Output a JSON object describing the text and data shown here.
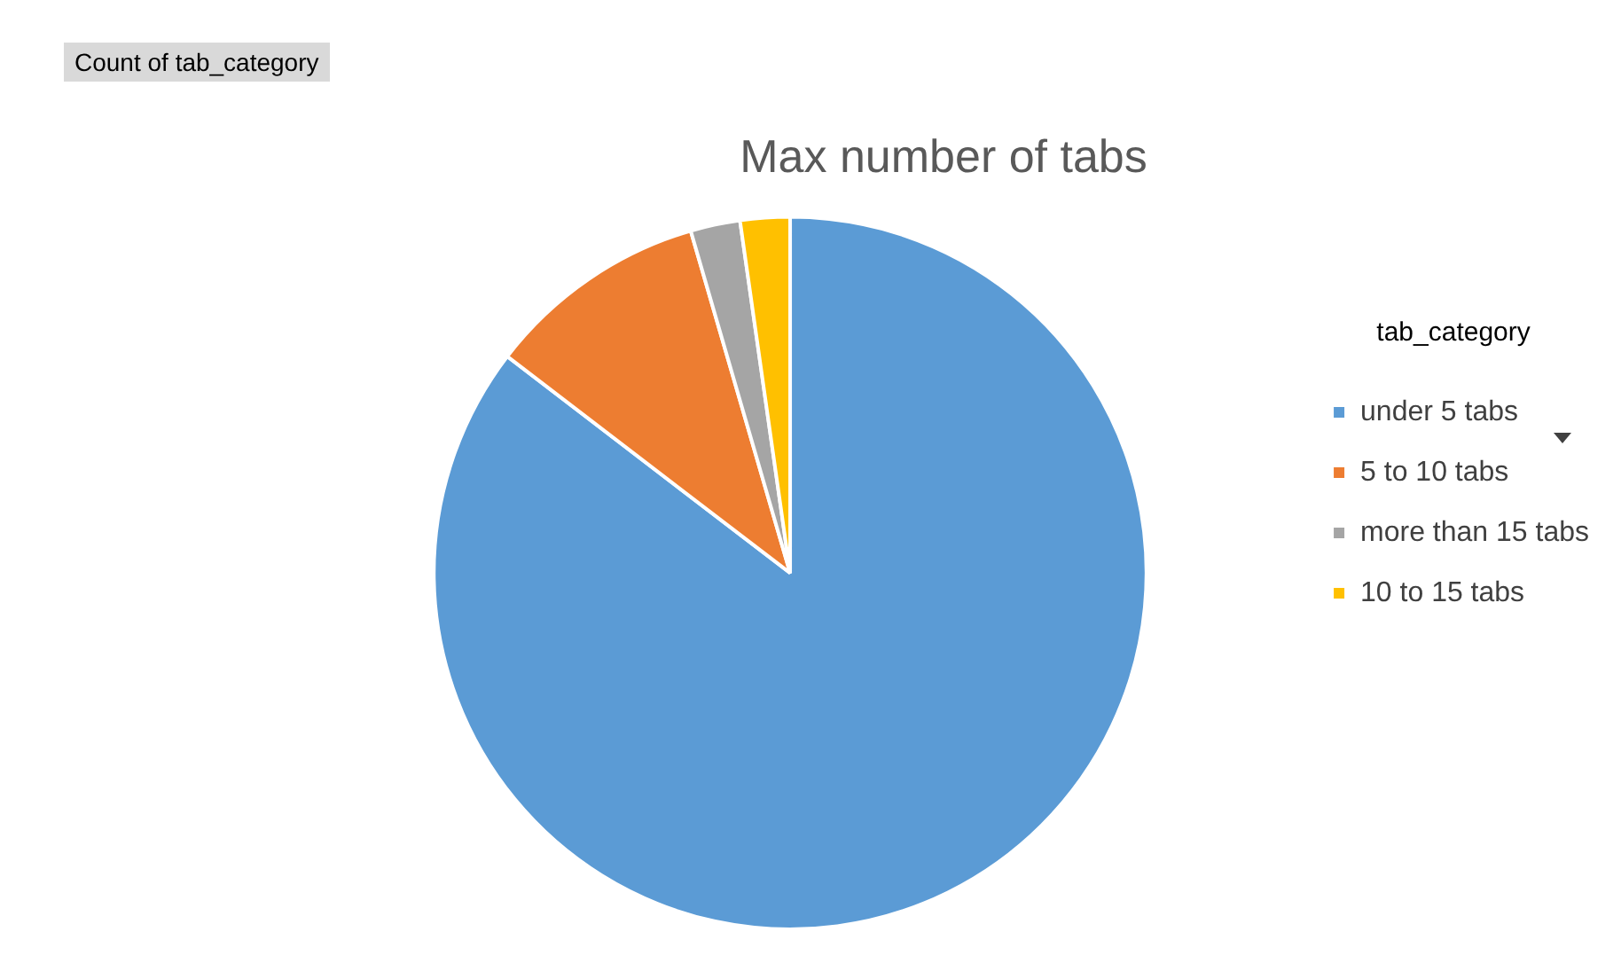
{
  "chart_data": {
    "type": "pie",
    "title": "Max number of tabs",
    "legend_title": "tab_category",
    "legend": "right",
    "categories": [
      "under 5 tabs",
      "5 to 10 tabs",
      "more than 15 tabs",
      "10 to 15 tabs"
    ],
    "values": [
      85.4,
      10.1,
      2.25,
      2.25
    ],
    "colors": [
      "#5b9bd5",
      "#ed7d31",
      "#a5a5a5",
      "#ffc000"
    ],
    "annotations": [
      "Count of tab_category"
    ]
  }
}
